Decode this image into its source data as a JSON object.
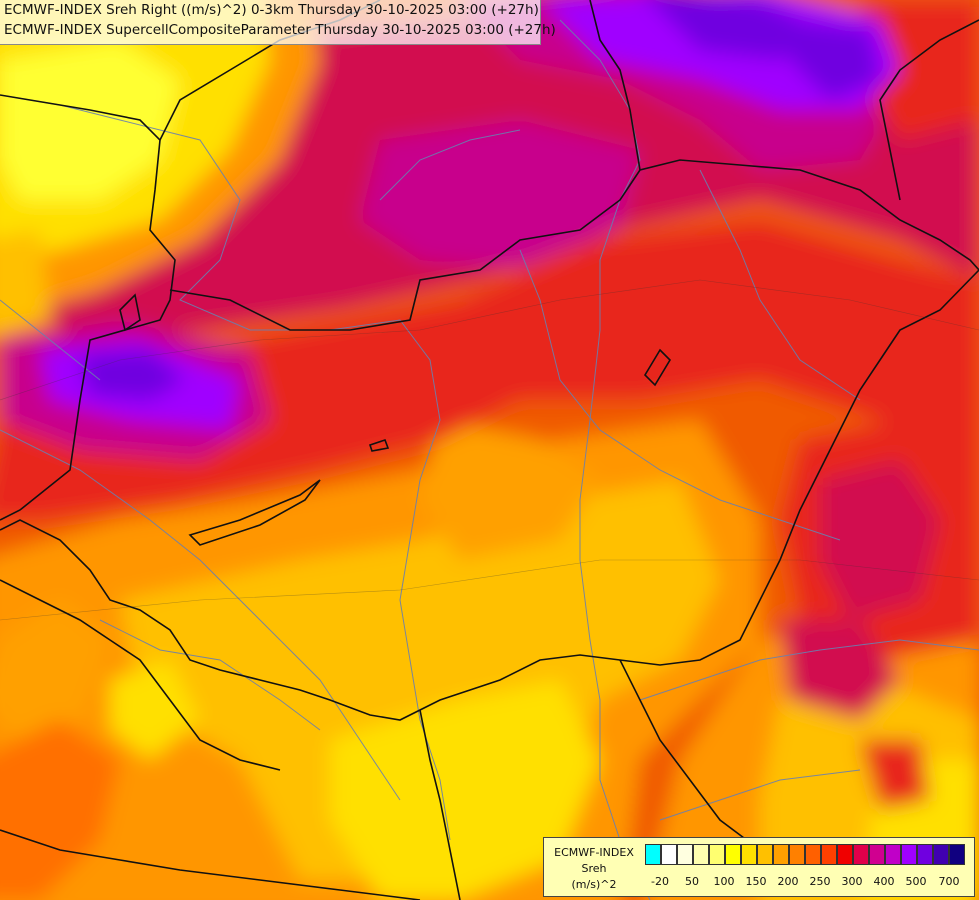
{
  "header": {
    "line1": "ECMWF-INDEX Sreh Right ((m/s)^2) 0-3km Thursday 30-10-2025 03:00 (+27h)",
    "line2": "ECMWF-INDEX SupercellCompositeParameter Thursday 30-10-2025 03:00 (+27h)"
  },
  "legend": {
    "title1": "ECMWF-INDEX",
    "title2": "Sreh",
    "title3": "(m/s)^2",
    "colors": [
      "#00ffff",
      "#ffffff",
      "#ffffe0",
      "#ffffb0",
      "#ffff70",
      "#ffff00",
      "#ffe000",
      "#ffc000",
      "#ffa000",
      "#ff8000",
      "#ff6000",
      "#ff4000",
      "#f00000",
      "#e0004a",
      "#d00090",
      "#c000c8",
      "#a000ff",
      "#7000e0",
      "#4000b0",
      "#100080"
    ],
    "ticks": [
      "-20",
      "50",
      "100",
      "150",
      "200",
      "250",
      "300",
      "400",
      "500",
      "700"
    ]
  },
  "palette": {
    "level_lowest": "#fff030",
    "level_low": "#ffc800",
    "level_mid": "#ff9600",
    "level_high": "#f05a00",
    "level_higher": "#e8281e",
    "level_very_high": "#d20f50",
    "level_magenta": "#c8008c",
    "level_purple": "#a000ff",
    "level_deep": "#5a00c8"
  }
}
